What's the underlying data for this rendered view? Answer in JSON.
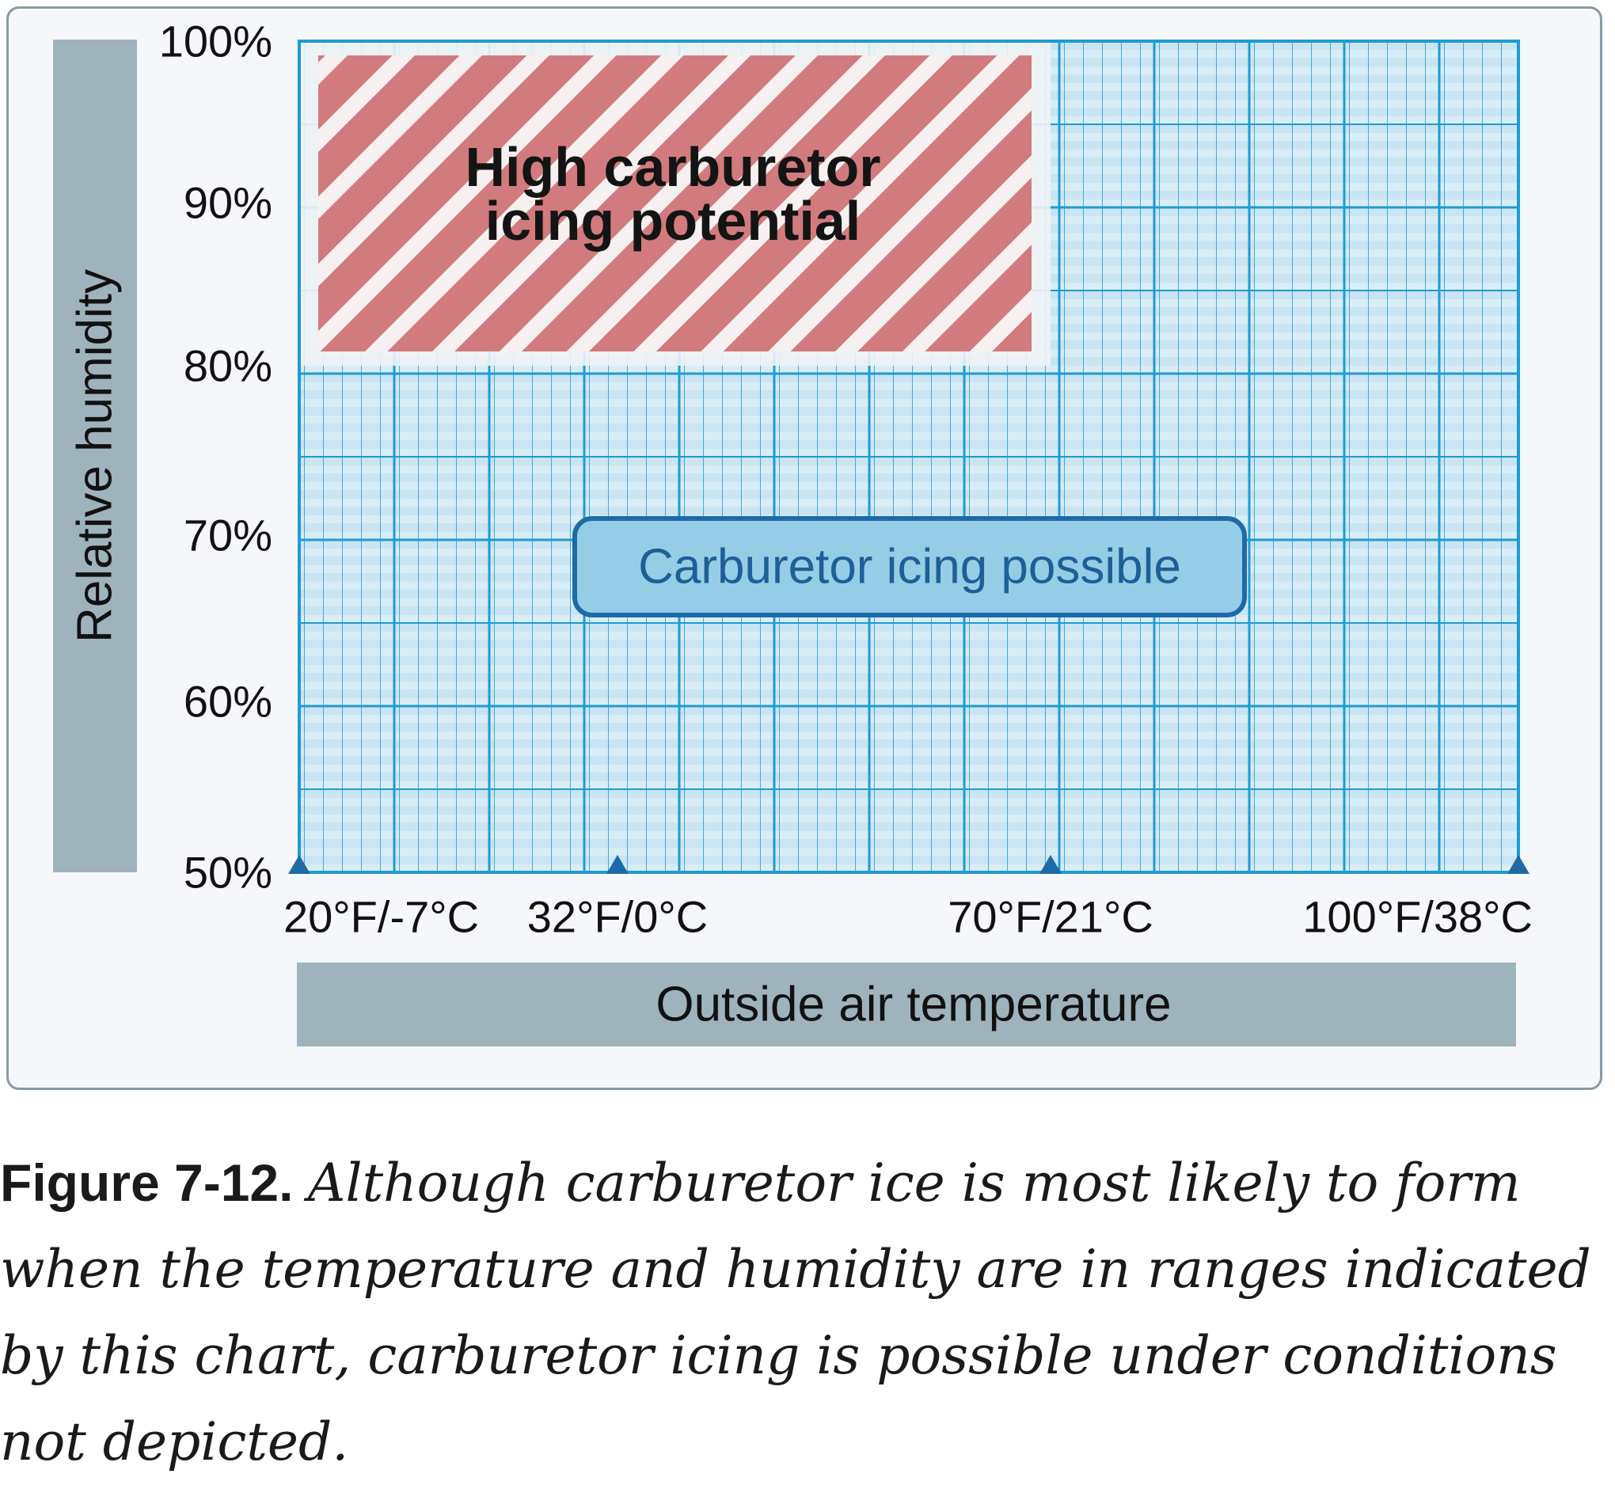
{
  "chart_data": {
    "type": "area",
    "xlabel": "Outside air temperature",
    "ylabel": "Relative humidity",
    "x_scale": "temperature (°F)",
    "xlim": [
      20,
      100
    ],
    "ylim": [
      50,
      100
    ],
    "x_ticks": [
      {
        "value": 20,
        "label": "20°F/-7°C"
      },
      {
        "value": 32,
        "label": "32°F/0°C"
      },
      {
        "value": 70,
        "label": "70°F/21°C"
      },
      {
        "value": 100,
        "label": "100°F/38°C"
      }
    ],
    "y_ticks": [
      {
        "value": 100,
        "label": "100%"
      },
      {
        "value": 90,
        "label": "90%"
      },
      {
        "value": 80,
        "label": "80%"
      },
      {
        "value": 70,
        "label": "70%"
      },
      {
        "value": 60,
        "label": "60%"
      },
      {
        "value": 50,
        "label": "50%"
      }
    ],
    "regions": [
      {
        "label": "Carburetor icing possible",
        "x": [
          20,
          100
        ],
        "y": [
          50,
          100
        ],
        "color": "#c8e4f2",
        "pattern": "grid"
      },
      {
        "label": "High carburetor icing potential",
        "x": [
          20,
          70
        ],
        "y": [
          80,
          100
        ],
        "color": "#d27b7e",
        "pattern": "diagonal stripes"
      }
    ],
    "annotations": [
      {
        "text": "High carburetor icing potential",
        "lines": [
          "High carburetor",
          "icing potential"
        ]
      },
      {
        "text": "Carburetor icing possible"
      }
    ],
    "grid": true,
    "colors": {
      "grid": "#1e9bd4",
      "label_box": "#9fb3bd",
      "tick_marker": "#1f6aa6",
      "annotation_box": "#96cde6",
      "annotation_text": "#1d5f96"
    }
  },
  "caption": {
    "figure": "Figure 7-12.",
    "text": "Although carburetor ice is most likely to form when the temperature and humidity are in ranges indicated by this chart, carburetor icing is possible under conditions not depicted."
  }
}
